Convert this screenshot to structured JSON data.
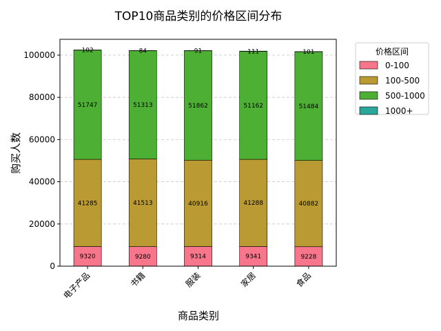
{
  "chart_data": {
    "type": "bar",
    "stacked": true,
    "title": "TOP10商品类别的价格区间分布",
    "xlabel": "商品类别",
    "ylabel": "购买人数",
    "categories": [
      "电子产品",
      "书籍",
      "服装",
      "家居",
      "食品"
    ],
    "ylim": [
      0,
      107500
    ],
    "yticks": [
      0,
      20000,
      40000,
      60000,
      80000,
      100000
    ],
    "ytick_labels": [
      "0",
      "20000",
      "40000",
      "60000",
      "80000",
      "100000"
    ],
    "grid": "y-dashed",
    "legend": {
      "title": "价格区间",
      "placement": "outside-top-right"
    },
    "series": [
      {
        "name": "0-100",
        "color": "#f7768b",
        "values": [
          9320,
          9280,
          9314,
          9341,
          9228
        ]
      },
      {
        "name": "100-500",
        "color": "#b99a33",
        "values": [
          41285,
          41513,
          40916,
          41288,
          40882
        ]
      },
      {
        "name": "500-1000",
        "color": "#4daf33",
        "values": [
          51747,
          51313,
          51862,
          51162,
          51484
        ]
      },
      {
        "name": "1000+",
        "color": "#2aa79a",
        "values": [
          102,
          84,
          91,
          111,
          101
        ]
      }
    ]
  }
}
